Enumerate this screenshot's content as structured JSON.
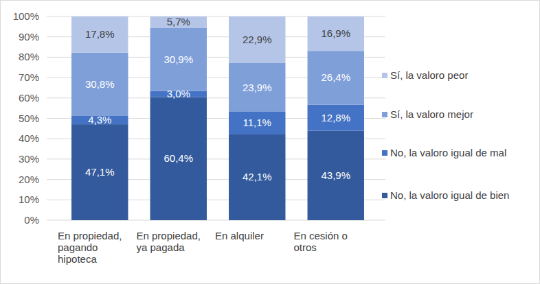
{
  "chart_data": {
    "type": "bar",
    "stacked": true,
    "data_labels": true,
    "grid": true,
    "legend": "right",
    "categories": [
      "En propiedad, pagando hipoteca",
      "En propiedad, ya pagada",
      "En alquiler",
      "En cesión o otros"
    ],
    "ylim": [
      0,
      100
    ],
    "yticks": [
      {
        "value": 0,
        "label": "0%"
      },
      {
        "value": 10,
        "label": "10%"
      },
      {
        "value": 20,
        "label": "20%"
      },
      {
        "value": 30,
        "label": "30%"
      },
      {
        "value": 40,
        "label": "40%"
      },
      {
        "value": 50,
        "label": "50%"
      },
      {
        "value": 60,
        "label": "60%"
      },
      {
        "value": 70,
        "label": "70%"
      },
      {
        "value": 80,
        "label": "80%"
      },
      {
        "value": 90,
        "label": "90%"
      },
      {
        "value": 100,
        "label": "100%"
      }
    ],
    "series": [
      {
        "name": "No, la valoro igual de bien",
        "color": "#335a9c",
        "values": [
          47.1,
          60.4,
          42.1,
          43.9
        ],
        "value_labels": [
          "47,1%",
          "60,4%",
          "42,1%",
          "43,9%"
        ]
      },
      {
        "name": "No, la valoro igual de mal",
        "color": "#4472c4",
        "values": [
          4.3,
          3.0,
          11.1,
          12.8
        ],
        "value_labels": [
          "4,3%",
          "3,0%",
          "11,1%",
          "12,8%"
        ]
      },
      {
        "name": "Sí, la valoro mejor",
        "color": "#7f9fd9",
        "values": [
          30.8,
          30.9,
          23.9,
          26.4
        ],
        "value_labels": [
          "30,8%",
          "30,9%",
          "23,9%",
          "26,4%"
        ]
      },
      {
        "name": "Sí, la valoro peor",
        "color": "#b4c5e8",
        "values": [
          17.8,
          5.7,
          22.9,
          16.9
        ],
        "value_labels": [
          "17,8%",
          "5,7%",
          "22,9%",
          "16,9%"
        ]
      }
    ]
  }
}
